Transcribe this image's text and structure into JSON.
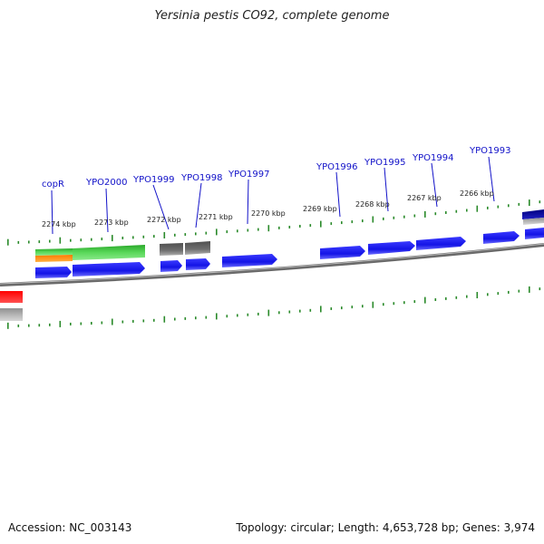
{
  "title": "Yersinia pestis CO92, complete genome",
  "footer": {
    "accession": "Accession: NC_003143",
    "summary": "Topology: circular; Length: 4,653,728 bp; Genes: 3,974"
  },
  "gene_labels": [
    "copR",
    "YPO2000",
    "YPO1999",
    "YPO1998",
    "YPO1997",
    "YPO1996",
    "YPO1995",
    "YPO1994",
    "YPO1993"
  ],
  "kbp_labels": [
    "2274 kbp",
    "2273 kbp",
    "2272 kbp",
    "2271 kbp",
    "2270 kbp",
    "2269 kbp",
    "2268 kbp",
    "2267 kbp",
    "2266 kbp"
  ],
  "colors": {
    "cds_blue": "#1414e6",
    "green": "#3cc83c",
    "orange": "#ff8c00",
    "gray": "#707070",
    "red": "#ff0000",
    "tick_green": "#2a8a2a",
    "backbone": "#7a7a7a",
    "label_blue": "#1010c8"
  }
}
